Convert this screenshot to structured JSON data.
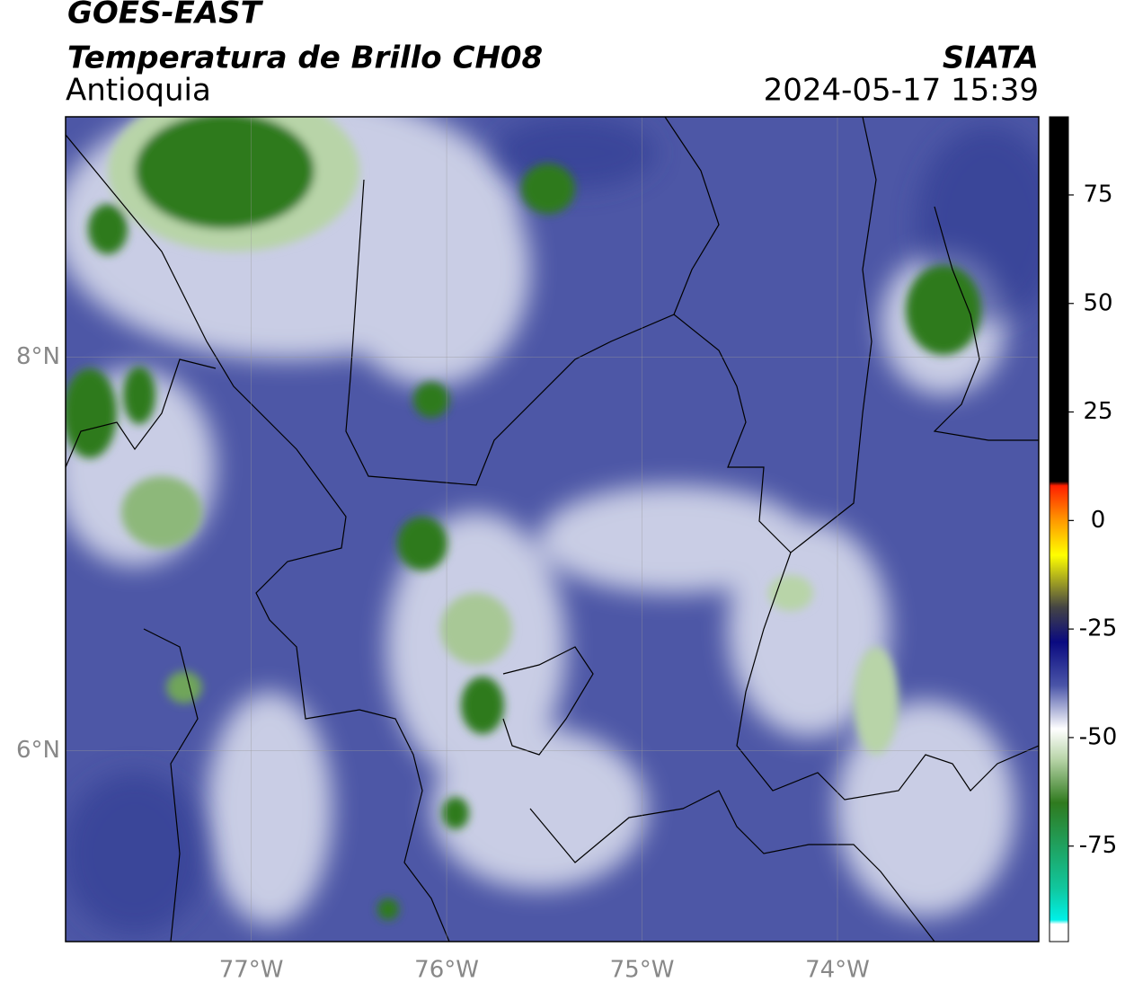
{
  "chart_data": {
    "type": "map",
    "title": "GOES-EAST",
    "subtitle": "Temperatura de Brillo CH08",
    "region": "Antioquia",
    "source": "SIATA",
    "timestamp": "2024-05-17 15:39",
    "xlim": [
      -77.95,
      -72.97
    ],
    "ylim": [
      5.03,
      9.22
    ],
    "xticks": [
      {
        "value": -77,
        "label": "77°W"
      },
      {
        "value": -76,
        "label": "76°W"
      },
      {
        "value": -75,
        "label": "75°W"
      },
      {
        "value": -74,
        "label": "74°W"
      }
    ],
    "yticks": [
      {
        "value": 8,
        "label": "8°N"
      },
      {
        "value": 6,
        "label": "6°N"
      }
    ],
    "grid": true,
    "colorbar": {
      "lim": [
        -97,
        93
      ],
      "ticks": [
        75,
        50,
        25,
        0,
        -25,
        -50,
        -75
      ],
      "stops": [
        [
          93,
          "#000000"
        ],
        [
          9,
          "#000000"
        ],
        [
          8,
          "#ff2000"
        ],
        [
          0,
          "#ff9900"
        ],
        [
          -8,
          "#ffff00"
        ],
        [
          -20,
          "#444444"
        ],
        [
          -28,
          "#0a0a80"
        ],
        [
          -38,
          "#4a55a8"
        ],
        [
          -48,
          "#ffffff"
        ],
        [
          -55,
          "#b8d4a8"
        ],
        [
          -65,
          "#2f7a1e"
        ],
        [
          -85,
          "#10c8a0"
        ],
        [
          -92,
          "#00f0e8"
        ],
        [
          -93,
          "#ffffff"
        ],
        [
          -97,
          "#ffffff"
        ]
      ]
    }
  }
}
